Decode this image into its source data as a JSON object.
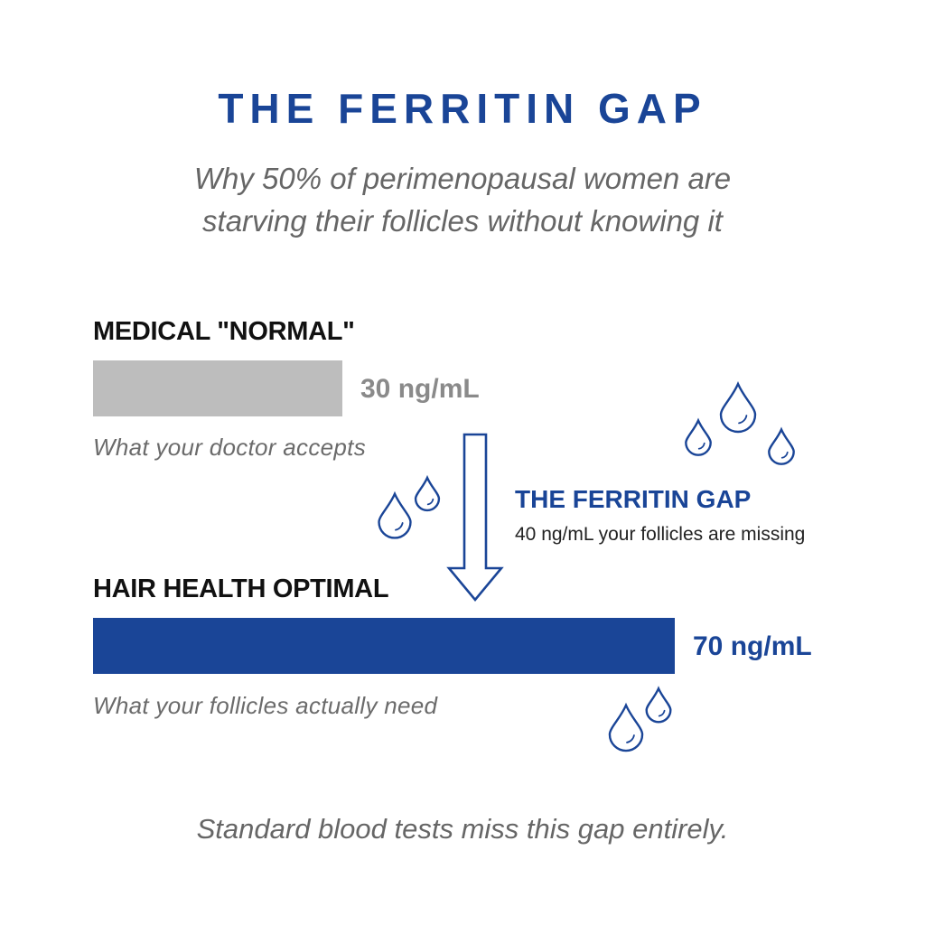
{
  "colors": {
    "accent": "#1a4597",
    "bar_normal": "#bdbdbd",
    "value_normal": "#8a8a8a",
    "drop_stroke": "#1a4597"
  },
  "header": {
    "title": "THE FERRITIN GAP",
    "subtitle_lines": [
      "Why 50% of perimenopausal women are",
      "starving their follicles without knowing it"
    ]
  },
  "chart_data": {
    "type": "bar",
    "orientation": "horizontal",
    "unit": "ng/mL",
    "categories": [
      "MEDICAL \"NORMAL\"",
      "HAIR HEALTH OPTIMAL"
    ],
    "values": [
      30,
      70
    ],
    "value_labels": [
      "30 ng/mL",
      "70 ng/mL"
    ],
    "notes": [
      "What your doctor accepts",
      "What your follicles actually need"
    ],
    "annotation": {
      "title": "THE FERRITIN GAP",
      "text": "40 ng/mL your follicles are missing",
      "gap_value": 40
    },
    "grid": false,
    "legend": "none"
  },
  "footer": {
    "text": "Standard blood tests miss this gap entirely."
  },
  "icons": [
    "water-drop-icon",
    "arrow-down-icon"
  ]
}
